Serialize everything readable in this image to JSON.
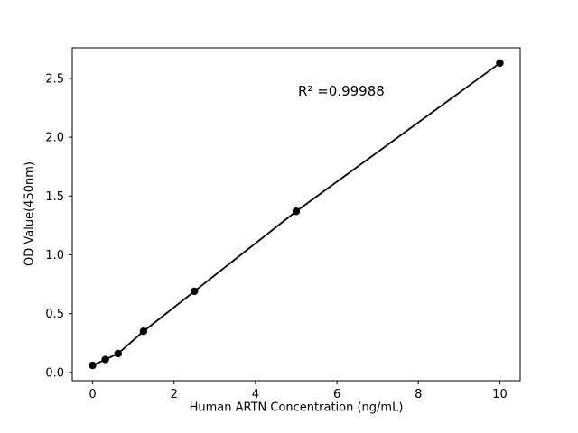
{
  "chart_data": {
    "type": "scatter",
    "title": "",
    "xlabel": "Human ARTN Concentration (ng/mL)",
    "ylabel": "OD Value(450nm)",
    "annotation": "R² =0.99988",
    "x": [
      0,
      0.3125,
      0.625,
      1.25,
      2.5,
      5,
      10
    ],
    "y": [
      0.06,
      0.11,
      0.16,
      0.35,
      0.69,
      1.37,
      2.63
    ],
    "xticks": [
      0,
      2,
      4,
      6,
      8,
      10
    ],
    "xtick_labels": [
      "0",
      "2",
      "4",
      "6",
      "8",
      "10"
    ],
    "yticks": [
      0.0,
      0.5,
      1.0,
      1.5,
      2.0,
      2.5
    ],
    "ytick_labels": [
      "0.0",
      "0.5",
      "1.0",
      "1.5",
      "2.0",
      "2.5"
    ],
    "xlim": [
      -0.5,
      10.5
    ],
    "ylim": [
      -0.07,
      2.76
    ],
    "grid": false,
    "legend_position": "none",
    "marker_color": "#000000",
    "line_color": "#000000",
    "background_color": "#ffffff"
  }
}
